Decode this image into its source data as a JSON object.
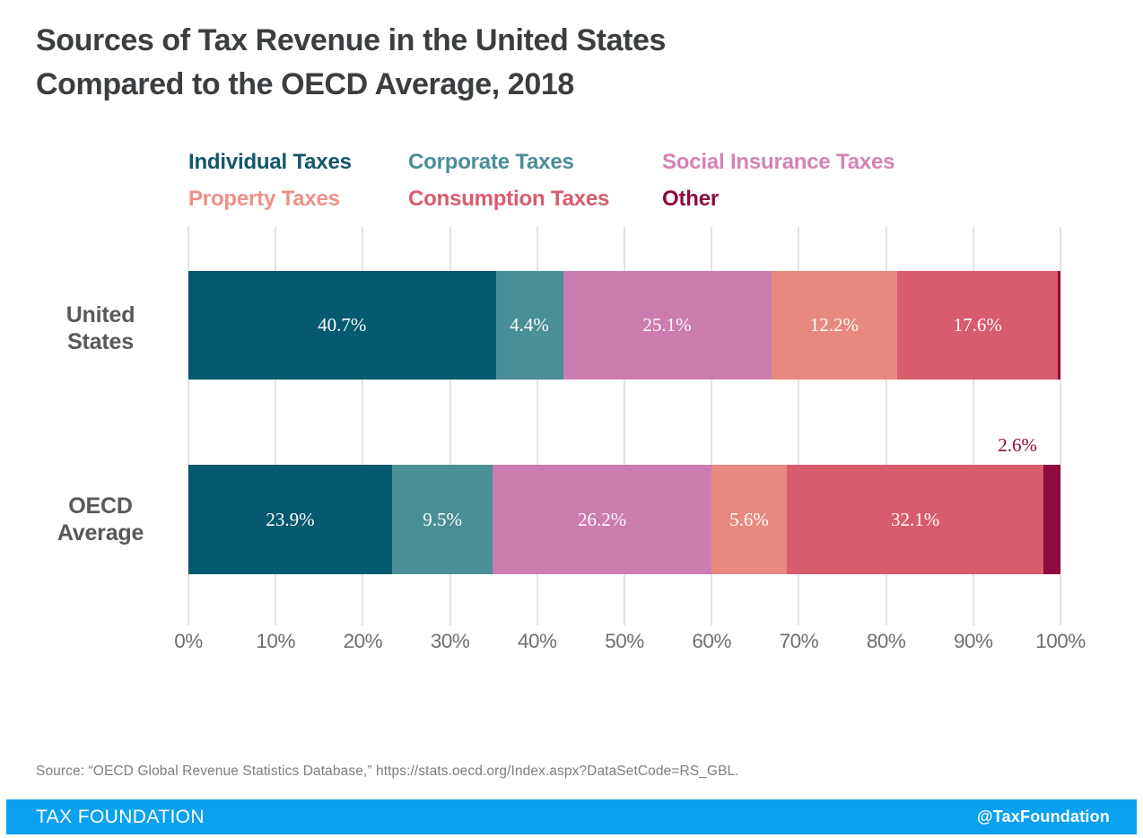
{
  "title": {
    "line1": "Sources of Tax Revenue in the United States",
    "line2": "Compared to the OECD Average, 2018"
  },
  "legend": [
    {
      "label": "Individual Taxes",
      "color": "#14566B"
    },
    {
      "label": "Corporate Taxes",
      "color": "#4A8E98"
    },
    {
      "label": "Social Insurance Taxes",
      "color": "#D483B3"
    },
    {
      "label": "Property Taxes",
      "color": "#EE9187"
    },
    {
      "label": "Consumption Taxes",
      "color": "#D95C6C"
    },
    {
      "label": "Other",
      "color": "#8E0B3F"
    }
  ],
  "chart_data": {
    "type": "bar",
    "orientation": "horizontal-stacked",
    "title": "Sources of Tax Revenue in the United States Compared to the OECD Average, 2018",
    "categories": [
      "United States",
      "OECD Average"
    ],
    "series": [
      {
        "name": "Individual Taxes",
        "color": "#065A70",
        "values": [
          40.7,
          23.9
        ]
      },
      {
        "name": "Corporate Taxes",
        "color": "#4A8E98",
        "values": [
          4.4,
          9.5
        ]
      },
      {
        "name": "Social Insurance Taxes",
        "color": "#CC7CAE",
        "values": [
          25.1,
          26.2
        ]
      },
      {
        "name": "Property Taxes",
        "color": "#E8897F",
        "values": [
          12.2,
          5.6
        ]
      },
      {
        "name": "Consumption Taxes",
        "color": "#D95C6C",
        "values": [
          17.6,
          32.1
        ]
      },
      {
        "name": "Other",
        "color": "#8E0B3F",
        "values": [
          0.4,
          2.6
        ]
      }
    ],
    "xlabel": "",
    "ylabel": "",
    "xlim": [
      0,
      100
    ],
    "x_ticks": [
      "0%",
      "10%",
      "20%",
      "30%",
      "40%",
      "50%",
      "60%",
      "70%",
      "80%",
      "90%",
      "100%"
    ],
    "grid": "vertical",
    "legend_position": "top"
  },
  "rows": [
    {
      "label_lines": [
        "United",
        "States"
      ],
      "labels": [
        "40.7%",
        "4.4%",
        "25.1%",
        "12.2%",
        "17.6%",
        ""
      ]
    },
    {
      "label_lines": [
        "OECD",
        "Average"
      ],
      "labels": [
        "23.9%",
        "9.5%",
        "26.2%",
        "5.6%",
        "32.1%",
        ""
      ]
    }
  ],
  "oecd_other_callout": "2.6%",
  "source": {
    "text": "Source: “OECD Global Revenue Statistics Database,” https://stats.oecd.org/Index.aspx?DataSetCode=RS_GBL."
  },
  "footer": {
    "brand": "TAX FOUNDATION",
    "handle": "@TaxFoundation",
    "bg_color": "#0BA1F1"
  },
  "colors": {
    "gridline": "#E3E3E3",
    "title_text": "#3B3E40",
    "row_label_text": "#58595B",
    "tick_text": "#6E6E6E",
    "source_text": "#7E7E7E"
  }
}
